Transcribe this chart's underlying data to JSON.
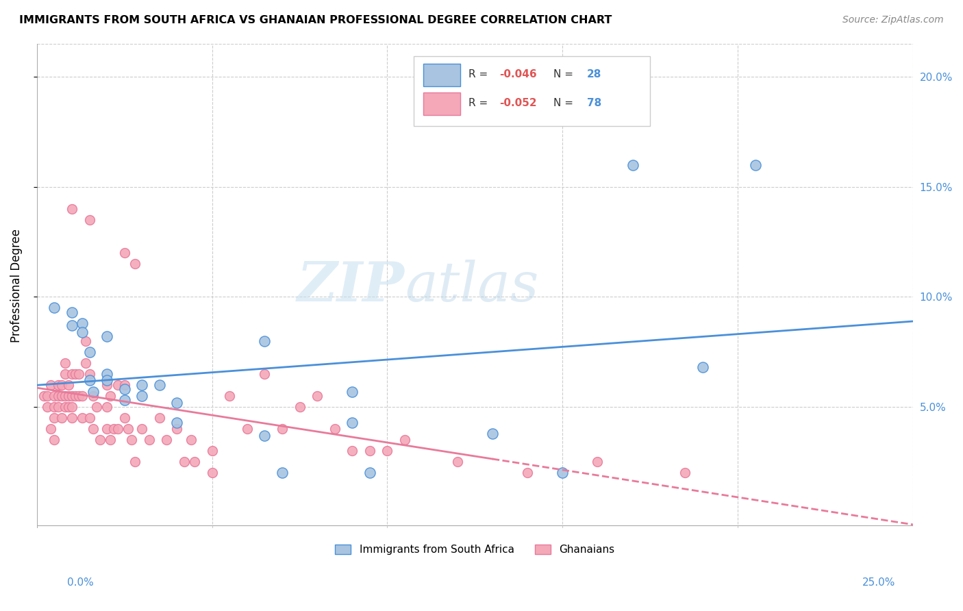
{
  "title": "IMMIGRANTS FROM SOUTH AFRICA VS GHANAIAN PROFESSIONAL DEGREE CORRELATION CHART",
  "source": "Source: ZipAtlas.com",
  "ylabel": "Professional Degree",
  "xlim": [
    0.0,
    0.25
  ],
  "ylim": [
    -0.005,
    0.215
  ],
  "color_blue": "#a8c4e0",
  "color_pink": "#f4a8b8",
  "line_blue": "#4a90d9",
  "line_pink": "#e87a9a",
  "watermark_zip": "ZIP",
  "watermark_atlas": "atlas",
  "blue_scatter_x": [
    0.005,
    0.01,
    0.01,
    0.013,
    0.013,
    0.015,
    0.015,
    0.016,
    0.02,
    0.02,
    0.02,
    0.025,
    0.025,
    0.03,
    0.03,
    0.035,
    0.04,
    0.04,
    0.065,
    0.065,
    0.07,
    0.09,
    0.09,
    0.095,
    0.13,
    0.15,
    0.19,
    0.205,
    0.17
  ],
  "blue_scatter_y": [
    0.095,
    0.093,
    0.087,
    0.088,
    0.084,
    0.075,
    0.062,
    0.057,
    0.082,
    0.065,
    0.062,
    0.058,
    0.053,
    0.06,
    0.055,
    0.06,
    0.052,
    0.043,
    0.08,
    0.037,
    0.02,
    0.057,
    0.043,
    0.02,
    0.038,
    0.02,
    0.068,
    0.16,
    0.16
  ],
  "pink_scatter_x": [
    0.002,
    0.003,
    0.003,
    0.004,
    0.004,
    0.005,
    0.005,
    0.005,
    0.005,
    0.006,
    0.006,
    0.006,
    0.007,
    0.007,
    0.007,
    0.008,
    0.008,
    0.008,
    0.008,
    0.009,
    0.009,
    0.009,
    0.01,
    0.01,
    0.01,
    0.01,
    0.011,
    0.011,
    0.012,
    0.012,
    0.013,
    0.013,
    0.014,
    0.014,
    0.015,
    0.015,
    0.016,
    0.016,
    0.017,
    0.018,
    0.02,
    0.02,
    0.02,
    0.021,
    0.021,
    0.022,
    0.023,
    0.023,
    0.025,
    0.025,
    0.026,
    0.027,
    0.028,
    0.03,
    0.032,
    0.035,
    0.037,
    0.04,
    0.042,
    0.044,
    0.045,
    0.05,
    0.05,
    0.055,
    0.06,
    0.065,
    0.07,
    0.075,
    0.08,
    0.085,
    0.09,
    0.095,
    0.1,
    0.105,
    0.12,
    0.14,
    0.16,
    0.185,
    0.01,
    0.015,
    0.025,
    0.028
  ],
  "pink_scatter_y": [
    0.055,
    0.055,
    0.05,
    0.06,
    0.04,
    0.055,
    0.05,
    0.045,
    0.035,
    0.06,
    0.055,
    0.05,
    0.06,
    0.055,
    0.045,
    0.07,
    0.065,
    0.055,
    0.05,
    0.06,
    0.055,
    0.05,
    0.065,
    0.055,
    0.05,
    0.045,
    0.065,
    0.055,
    0.065,
    0.055,
    0.055,
    0.045,
    0.08,
    0.07,
    0.065,
    0.045,
    0.055,
    0.04,
    0.05,
    0.035,
    0.06,
    0.05,
    0.04,
    0.055,
    0.035,
    0.04,
    0.06,
    0.04,
    0.06,
    0.045,
    0.04,
    0.035,
    0.025,
    0.04,
    0.035,
    0.045,
    0.035,
    0.04,
    0.025,
    0.035,
    0.025,
    0.03,
    0.02,
    0.055,
    0.04,
    0.065,
    0.04,
    0.05,
    0.055,
    0.04,
    0.03,
    0.03,
    0.03,
    0.035,
    0.025,
    0.02,
    0.025,
    0.02,
    0.14,
    0.135,
    0.12,
    0.115
  ]
}
